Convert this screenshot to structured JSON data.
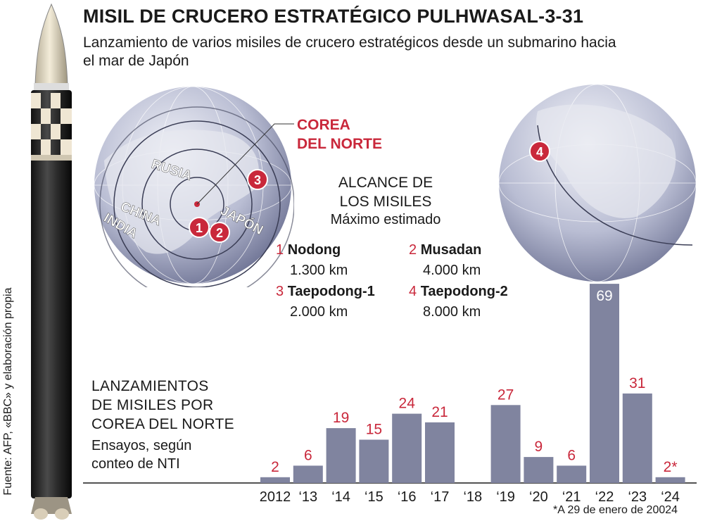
{
  "header": {
    "title": "MISIL DE CRUCERO ESTRATÉGICO PULHWASAL-3-31",
    "subtitle": "Lanzamiento de varios misiles de crucero estratégicos desde un submarino hacia el mar de Japón"
  },
  "source": "Fuente: AFP, «BBC» y elaboración propia",
  "map": {
    "north_korea_label": [
      "COREA",
      "DEL NORTE"
    ],
    "country_labels": [
      "RUSIA",
      "CHINA",
      "INDIA",
      "JAPÓN"
    ],
    "markers": [
      "1",
      "2",
      "3",
      "4"
    ],
    "marker_color": "#c9283b"
  },
  "range_box": {
    "title": [
      "ALCANCE DE",
      "LOS MISILES"
    ],
    "subtitle": "Máximo estimado",
    "missiles": [
      {
        "num": "1",
        "name": "Nodong",
        "range": "1.300 km"
      },
      {
        "num": "2",
        "name": "Musadan",
        "range": "4.000 km"
      },
      {
        "num": "3",
        "name": "Taepodong-1",
        "range": "2.000 km"
      },
      {
        "num": "4",
        "name": "Taepodong-2",
        "range": "8.000 km"
      }
    ]
  },
  "launch_chart": {
    "title": [
      "LANZAMIENTOS",
      "DE MISILES POR",
      "COREA DEL NORTE"
    ],
    "subtitle": [
      "Ensayos, según",
      "conteo de NTI"
    ],
    "footnote": "*A 29 de enero de 20024"
  },
  "chart_data": {
    "type": "bar",
    "categories": [
      "2012",
      "‘13",
      "‘14",
      "‘15",
      "‘16",
      "‘17",
      "‘18",
      "‘19",
      "‘20",
      "‘21",
      "‘22",
      "‘23",
      "‘24"
    ],
    "values": [
      2,
      6,
      19,
      15,
      24,
      21,
      0,
      27,
      9,
      6,
      69,
      31,
      2
    ],
    "labels": [
      "2",
      "6",
      "19",
      "15",
      "24",
      "21",
      "",
      "27",
      "9",
      "6",
      "69",
      "31",
      "2*"
    ],
    "bar_color": "#80849f",
    "label_color": "#c9283b",
    "highlight_label_color": "#ffffff"
  }
}
